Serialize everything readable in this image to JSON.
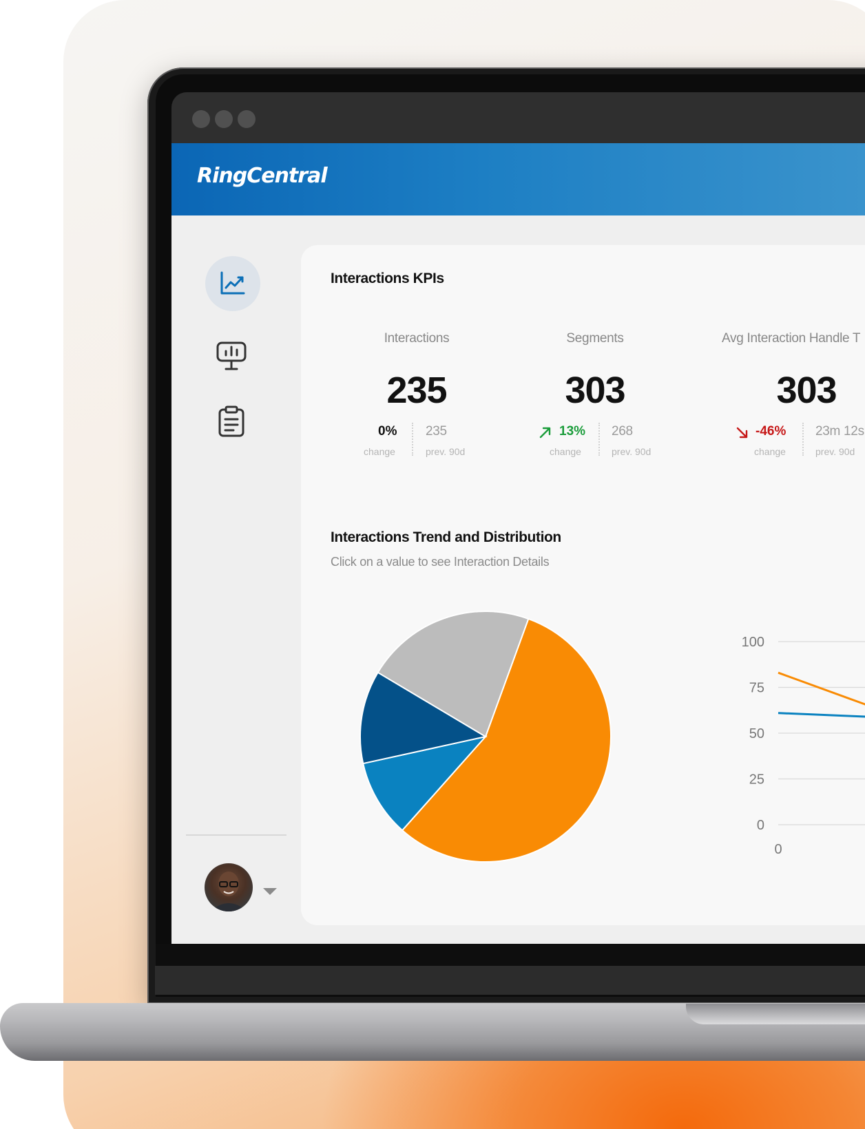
{
  "brand": {
    "logo_text": "RingCentral"
  },
  "nav": {
    "items": [
      {
        "icon": "trend-chart-icon",
        "active": true
      },
      {
        "icon": "presentation-chart-icon",
        "active": false
      },
      {
        "icon": "clipboard-report-icon",
        "active": false
      }
    ]
  },
  "kpis": {
    "title": "Interactions KPIs",
    "items": [
      {
        "label": "Interactions",
        "value": "235",
        "change": "0%",
        "change_caption": "change",
        "prev": "235",
        "prev_caption": "prev. 90d",
        "trend": "flat"
      },
      {
        "label": "Segments",
        "value": "303",
        "change": "13%",
        "change_caption": "change",
        "prev": "268",
        "prev_caption": "prev. 90d",
        "trend": "up"
      },
      {
        "label": "Avg Interaction Handle T",
        "value": "303",
        "change": "-46%",
        "change_caption": "change",
        "prev": "23m 12s",
        "prev_caption": "prev. 90d",
        "trend": "down"
      }
    ]
  },
  "trend": {
    "title": "Interactions Trend and Distribution",
    "subtitle": "Click on a value to see Interaction Details"
  },
  "colors": {
    "orange": "#f98b04",
    "dark_blue": "#045189",
    "mid_blue": "#0a82c0",
    "gray": "#bcbcbc",
    "up": "#1a9c3a",
    "down": "#c61717"
  },
  "chart_data": [
    {
      "type": "pie",
      "slices": [
        {
          "color": "#f98b04",
          "value": 56
        },
        {
          "color": "#0a82c0",
          "value": 10
        },
        {
          "color": "#045189",
          "value": 12
        },
        {
          "color": "#bcbcbc",
          "value": 22
        }
      ]
    },
    {
      "type": "line",
      "y_ticks": [
        "100",
        "75",
        "50",
        "25",
        "0"
      ],
      "x_ticks": [
        "0"
      ],
      "ylim": [
        0,
        100
      ],
      "series": [
        {
          "color": "#f98b04",
          "values": [
            83,
            57
          ]
        },
        {
          "color": "#0a82c0",
          "values": [
            61,
            58
          ]
        }
      ]
    }
  ]
}
